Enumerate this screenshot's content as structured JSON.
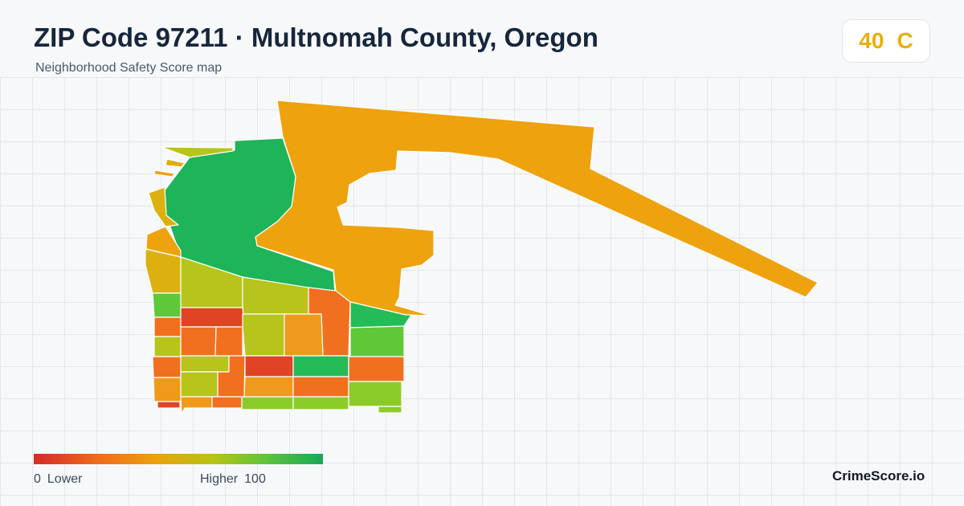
{
  "header": {
    "title": "ZIP Code 97211 · Multnomah County, Oregon",
    "subtitle": "Neighborhood Safety Score map"
  },
  "score_badge": {
    "score": "40",
    "grade": "C",
    "color": "#e8b00c"
  },
  "legend": {
    "min_value": "0",
    "min_label": "Lower",
    "max_label": "Higher",
    "max_value": "100",
    "colors": [
      "#d42b2b",
      "#ee6a1c",
      "#eca10d",
      "#b7c414",
      "#5fc43a",
      "#18a85a"
    ]
  },
  "brand": "CrimeScore.io",
  "map": {
    "colors": {
      "red": "#e04424",
      "orange_red": "#f07020",
      "orange": "#ef9a1a",
      "amber": "#eea20e",
      "gold": "#dcb00e",
      "olive": "#b6c41c",
      "yellow_green": "#8ccc2a",
      "light_green": "#5ec839",
      "green": "#25bb57",
      "dark_green": "#1db45a"
    }
  }
}
